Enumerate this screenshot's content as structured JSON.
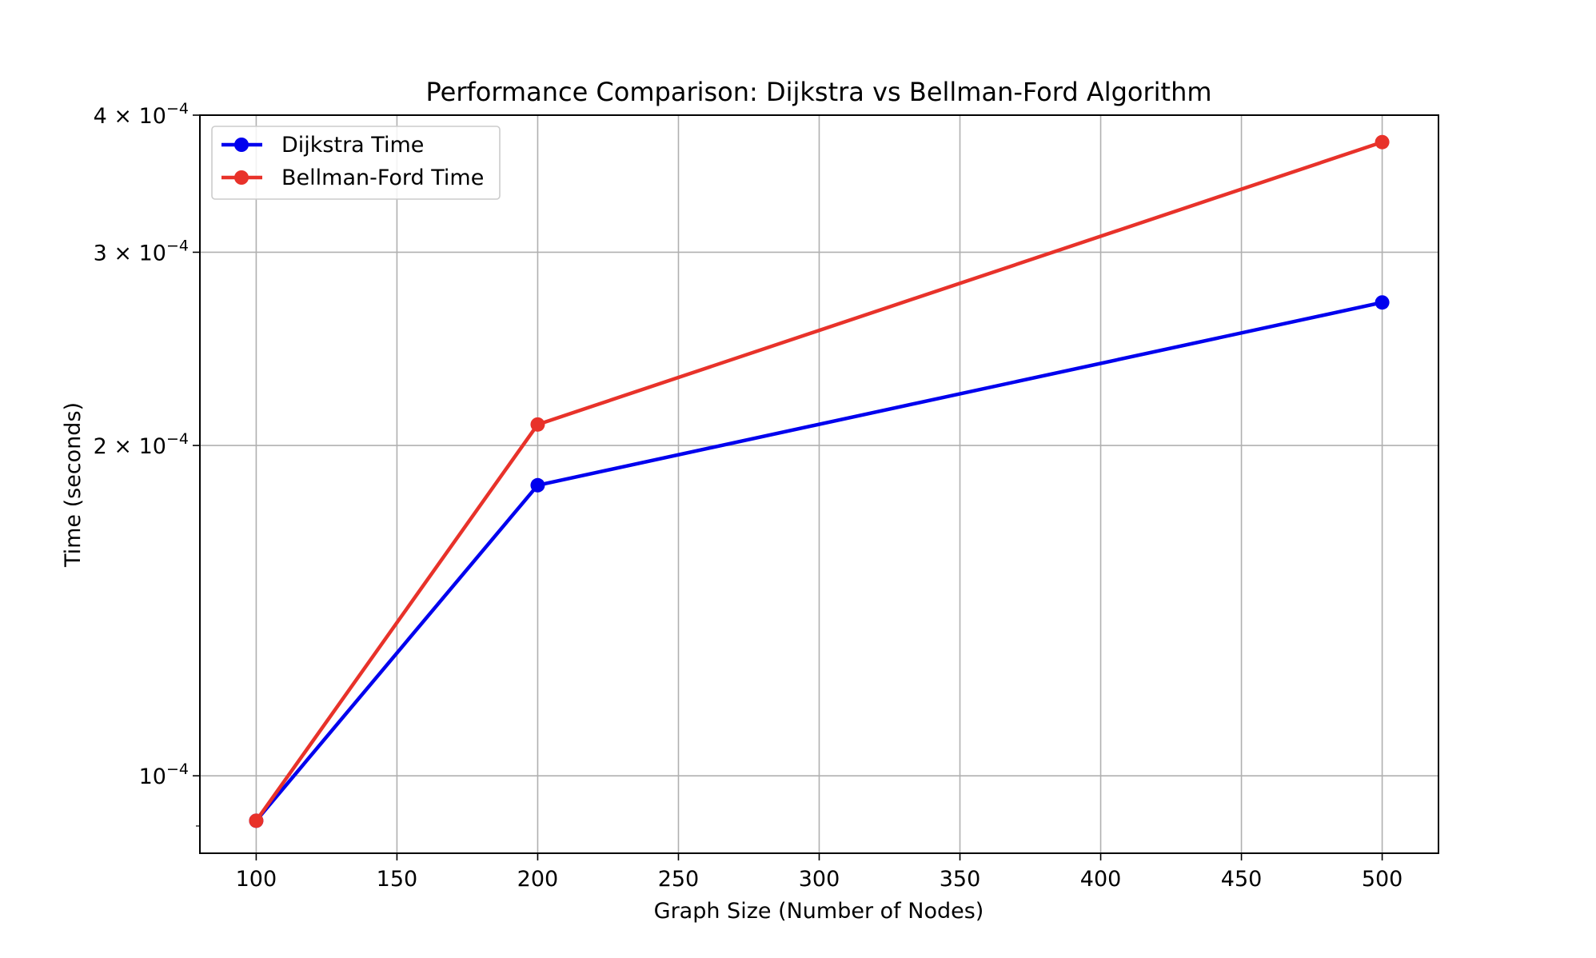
{
  "chart_data": {
    "type": "line",
    "title": "Performance Comparison: Dijkstra vs Bellman-Ford Algorithm",
    "xlabel": "Graph Size (Number of Nodes)",
    "ylabel": "Time (seconds)",
    "x": [
      100,
      200,
      500
    ],
    "xlim": [
      80,
      520
    ],
    "ylim": [
      8.5e-05,
      0.0004
    ],
    "yscale": "log",
    "grid": true,
    "legend_position": "top-left",
    "xticks": [
      {
        "value": 100,
        "label": "100"
      },
      {
        "value": 150,
        "label": "150"
      },
      {
        "value": 200,
        "label": "200"
      },
      {
        "value": 250,
        "label": "250"
      },
      {
        "value": 300,
        "label": "300"
      },
      {
        "value": 350,
        "label": "350"
      },
      {
        "value": 400,
        "label": "400"
      },
      {
        "value": 450,
        "label": "450"
      },
      {
        "value": 500,
        "label": "500"
      }
    ],
    "yticks": [
      {
        "value": 0.0001,
        "base": "10",
        "exp": "−4"
      },
      {
        "value": 0.0002,
        "base": "2 × 10",
        "exp": "−4"
      },
      {
        "value": 0.0003,
        "base": "3 × 10",
        "exp": "−4"
      },
      {
        "value": 0.0004,
        "base": "4 × 10",
        "exp": "−4"
      }
    ],
    "series": [
      {
        "name": "Dijkstra Time",
        "color": "#0000ee",
        "values": [
          9.1e-05,
          0.000184,
          0.00027
        ]
      },
      {
        "name": "Bellman-Ford Time",
        "color": "#e8322a",
        "values": [
          9.1e-05,
          0.000209,
          0.000378
        ]
      }
    ]
  }
}
